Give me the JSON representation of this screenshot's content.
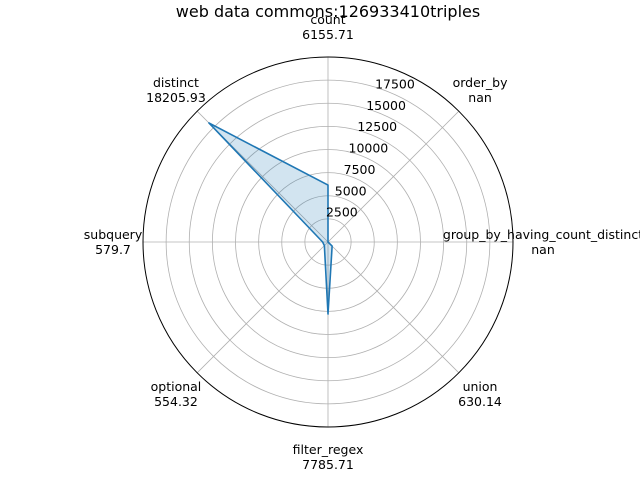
{
  "chart_data": {
    "type": "radar",
    "title": "web data commons:126933410triples",
    "categories": [
      "count",
      "order_by",
      "group_by_having_count_distinct",
      "union",
      "filter_regex",
      "optional",
      "subquery",
      "distinct"
    ],
    "value_labels": [
      "6155.71",
      "nan",
      "nan",
      "630.14",
      "7785.71",
      "554.32",
      "579.7",
      "18205.93"
    ],
    "values": [
      6155.71,
      null,
      null,
      630.14,
      7785.71,
      554.32,
      579.7,
      18205.93
    ],
    "radial_ticks": [
      2500,
      5000,
      7500,
      10000,
      12500,
      15000,
      17500
    ],
    "rlim": [
      0,
      20000
    ],
    "grid": true,
    "line_color": "#1f77b4",
    "fill_color": "#1f77b4",
    "fill_opacity": 0.2
  }
}
